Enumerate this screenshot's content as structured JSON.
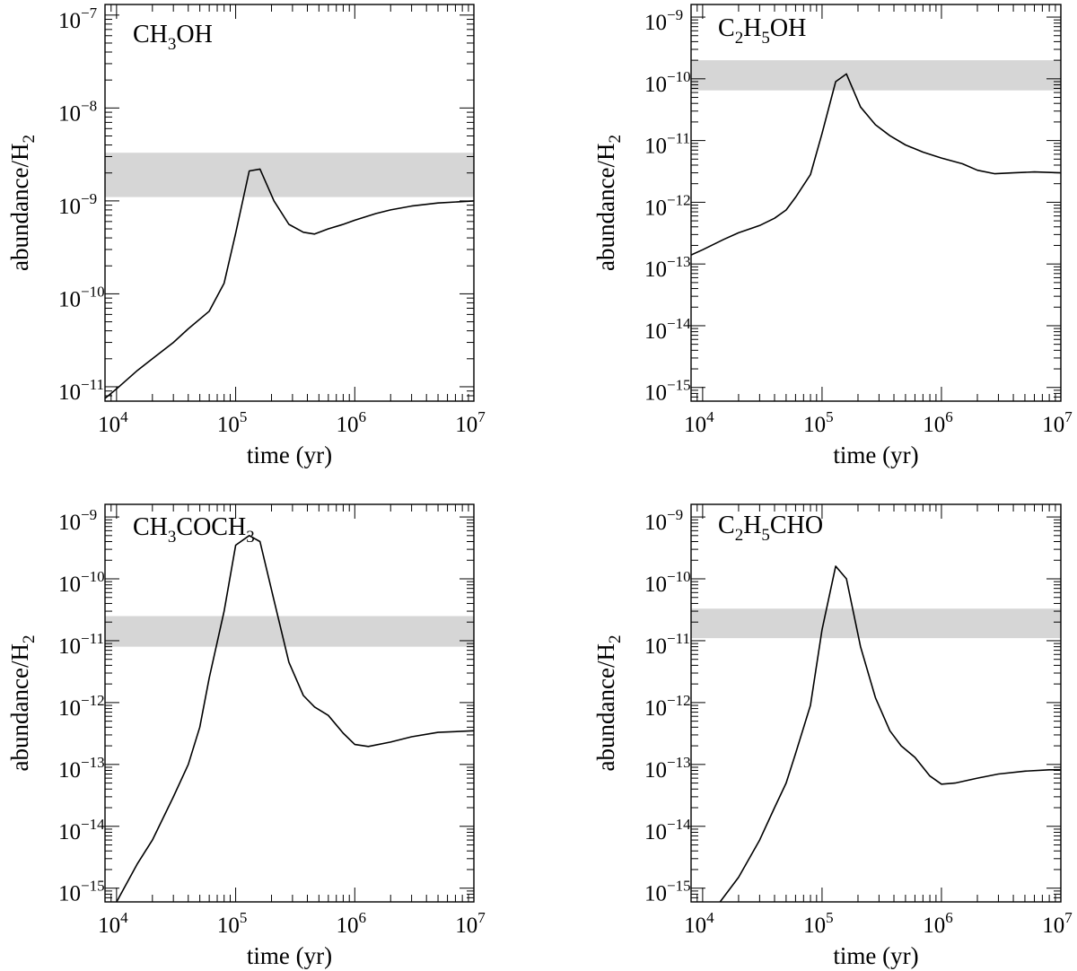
{
  "figure": {
    "xlabel": "time (yr)",
    "ylabel_main": "abundance/H",
    "ylabel_sub": "2"
  },
  "chart_data": [
    {
      "type": "line",
      "species": [
        [
          "CH",
          ""
        ],
        [
          "3",
          "sub"
        ],
        [
          "OH",
          ""
        ]
      ],
      "xscale": "log",
      "yscale": "log",
      "xlim": [
        8000,
        10000000
      ],
      "ylim": [
        7e-12,
        1.3e-07
      ],
      "xlabel": "time (yr)",
      "ylabel": "abundance/H2",
      "xticks": [
        {
          "base": "10",
          "exp": "4",
          "value": 10000
        },
        {
          "base": "10",
          "exp": "5",
          "value": 100000
        },
        {
          "base": "10",
          "exp": "6",
          "value": 1000000
        },
        {
          "base": "10",
          "exp": "7",
          "value": 10000000
        }
      ],
      "yticks": [
        {
          "base": "10",
          "exp": "−11",
          "value": 1e-11
        },
        {
          "base": "10",
          "exp": "−10",
          "value": 1e-10
        },
        {
          "base": "10",
          "exp": "−9",
          "value": 1e-09
        },
        {
          "base": "10",
          "exp": "−8",
          "value": 1e-08
        },
        {
          "base": "10",
          "exp": "−7",
          "value": 1e-07
        }
      ],
      "observed_band": [
        1.1e-09,
        3.3e-09
      ],
      "band_color": "#d6d6d6",
      "x": [
        8000,
        10000,
        15000,
        20000,
        30000,
        40000,
        60000,
        80000,
        100000,
        130000,
        160000,
        210000,
        280000,
        370000,
        460000,
        600000,
        800000,
        1000000,
        1500000,
        2000000,
        3000000,
        5000000,
        10000000
      ],
      "y": [
        7.5e-12,
        9.5e-12,
        1.5e-11,
        2e-11,
        3e-11,
        4.2e-11,
        6.5e-11,
        1.3e-10,
        4.5e-10,
        2.1e-09,
        2.2e-09,
        1e-09,
        5.6e-10,
        4.6e-10,
        4.4e-10,
        5e-10,
        5.6e-10,
        6.2e-10,
        7.3e-10,
        8e-10,
        8.8e-10,
        9.5e-10,
        1e-09
      ]
    },
    {
      "type": "line",
      "species": [
        [
          "C",
          ""
        ],
        [
          "2",
          "sub"
        ],
        [
          "H",
          ""
        ],
        [
          "5",
          "sub"
        ],
        [
          "OH",
          ""
        ]
      ],
      "xscale": "log",
      "yscale": "log",
      "xlim": [
        8000,
        10000000
      ],
      "ylim": [
        6e-16,
        1.6e-09
      ],
      "xlabel": "time (yr)",
      "ylabel": "abundance/H2",
      "xticks": [
        {
          "base": "10",
          "exp": "4",
          "value": 10000
        },
        {
          "base": "10",
          "exp": "5",
          "value": 100000
        },
        {
          "base": "10",
          "exp": "6",
          "value": 1000000
        },
        {
          "base": "10",
          "exp": "7",
          "value": 10000000
        }
      ],
      "yticks": [
        {
          "base": "10",
          "exp": "−15",
          "value": 1e-15
        },
        {
          "base": "10",
          "exp": "−14",
          "value": 1e-14
        },
        {
          "base": "10",
          "exp": "−13",
          "value": 1e-13
        },
        {
          "base": "10",
          "exp": "−12",
          "value": 1e-12
        },
        {
          "base": "10",
          "exp": "−11",
          "value": 1e-11
        },
        {
          "base": "10",
          "exp": "−10",
          "value": 1e-10
        },
        {
          "base": "10",
          "exp": "−9",
          "value": 1e-09
        }
      ],
      "observed_band": [
        6.5e-11,
        2e-10
      ],
      "band_color": "#d6d6d6",
      "x": [
        8000,
        10000,
        15000,
        20000,
        30000,
        40000,
        50000,
        60000,
        80000,
        100000,
        130000,
        160000,
        210000,
        280000,
        370000,
        500000,
        700000,
        1000000,
        1500000,
        2000000,
        2800000,
        4000000,
        6000000,
        10000000
      ],
      "y": [
        1.4e-13,
        1.7e-13,
        2.5e-13,
        3.2e-13,
        4.2e-13,
        5.5e-13,
        7.5e-13,
        1.2e-12,
        2.8e-12,
        1.3e-11,
        9e-11,
        1.2e-10,
        3.5e-11,
        1.8e-11,
        1.2e-11,
        8.5e-12,
        6.5e-12,
        5.2e-12,
        4.2e-12,
        3.3e-12,
        2.9e-12,
        3e-12,
        3.1e-12,
        3e-12
      ]
    },
    {
      "type": "line",
      "species": [
        [
          "CH",
          ""
        ],
        [
          "3",
          "sub"
        ],
        [
          "COCH",
          ""
        ],
        [
          "3",
          "sub"
        ]
      ],
      "xscale": "log",
      "yscale": "log",
      "xlim": [
        8000,
        10000000
      ],
      "ylim": [
        6e-16,
        1.6e-09
      ],
      "xlabel": "time (yr)",
      "ylabel": "abundance/H2",
      "xticks": [
        {
          "base": "10",
          "exp": "4",
          "value": 10000
        },
        {
          "base": "10",
          "exp": "5",
          "value": 100000
        },
        {
          "base": "10",
          "exp": "6",
          "value": 1000000
        },
        {
          "base": "10",
          "exp": "7",
          "value": 10000000
        }
      ],
      "yticks": [
        {
          "base": "10",
          "exp": "−15",
          "value": 1e-15
        },
        {
          "base": "10",
          "exp": "−14",
          "value": 1e-14
        },
        {
          "base": "10",
          "exp": "−13",
          "value": 1e-13
        },
        {
          "base": "10",
          "exp": "−12",
          "value": 1e-12
        },
        {
          "base": "10",
          "exp": "−11",
          "value": 1e-11
        },
        {
          "base": "10",
          "exp": "−10",
          "value": 1e-10
        },
        {
          "base": "10",
          "exp": "−9",
          "value": 1e-09
        }
      ],
      "observed_band": [
        8e-12,
        2.5e-11
      ],
      "band_color": "#d6d6d6",
      "x": [
        10000,
        15000,
        20000,
        30000,
        40000,
        50000,
        60000,
        80000,
        100000,
        130000,
        160000,
        210000,
        280000,
        370000,
        460000,
        600000,
        800000,
        1000000,
        1300000,
        2000000,
        3000000,
        5000000,
        10000000
      ],
      "y": [
        6e-16,
        2.5e-15,
        6e-15,
        3e-14,
        1e-13,
        4e-13,
        2.5e-12,
        3e-11,
        3.5e-10,
        5e-10,
        4e-10,
        4.5e-11,
        4.5e-12,
        1.3e-12,
        8.5e-13,
        6.2e-13,
        3.2e-13,
        2.1e-13,
        1.95e-13,
        2.3e-13,
        2.8e-13,
        3.3e-13,
        3.5e-13
      ]
    },
    {
      "type": "line",
      "species": [
        [
          "C",
          ""
        ],
        [
          "2",
          "sub"
        ],
        [
          "H",
          ""
        ],
        [
          "5",
          "sub"
        ],
        [
          "CHO",
          ""
        ]
      ],
      "xscale": "log",
      "yscale": "log",
      "xlim": [
        8000,
        10000000
      ],
      "ylim": [
        6e-16,
        1.6e-09
      ],
      "xlabel": "time (yr)",
      "ylabel": "abundance/H2",
      "xticks": [
        {
          "base": "10",
          "exp": "4",
          "value": 10000
        },
        {
          "base": "10",
          "exp": "5",
          "value": 100000
        },
        {
          "base": "10",
          "exp": "6",
          "value": 1000000
        },
        {
          "base": "10",
          "exp": "7",
          "value": 10000000
        }
      ],
      "yticks": [
        {
          "base": "10",
          "exp": "−15",
          "value": 1e-15
        },
        {
          "base": "10",
          "exp": "−14",
          "value": 1e-14
        },
        {
          "base": "10",
          "exp": "−13",
          "value": 1e-13
        },
        {
          "base": "10",
          "exp": "−12",
          "value": 1e-12
        },
        {
          "base": "10",
          "exp": "−11",
          "value": 1e-11
        },
        {
          "base": "10",
          "exp": "−10",
          "value": 1e-10
        },
        {
          "base": "10",
          "exp": "−9",
          "value": 1e-09
        }
      ],
      "observed_band": [
        1.1e-11,
        3.3e-11
      ],
      "band_color": "#d6d6d6",
      "x": [
        14000,
        20000,
        30000,
        40000,
        50000,
        60000,
        80000,
        100000,
        130000,
        160000,
        210000,
        280000,
        370000,
        460000,
        600000,
        800000,
        1000000,
        1300000,
        2000000,
        3000000,
        5000000,
        8000000,
        10000000
      ],
      "y": [
        6e-16,
        1.5e-15,
        6e-15,
        2e-14,
        5e-14,
        1.5e-13,
        9e-13,
        1.5e-11,
        1.6e-10,
        1e-10,
        8e-12,
        1.2e-12,
        3.5e-13,
        2e-13,
        1.3e-13,
        6.5e-14,
        4.8e-14,
        5e-14,
        6e-14,
        7e-14,
        7.8e-14,
        8.2e-14,
        8.2e-14
      ]
    }
  ]
}
